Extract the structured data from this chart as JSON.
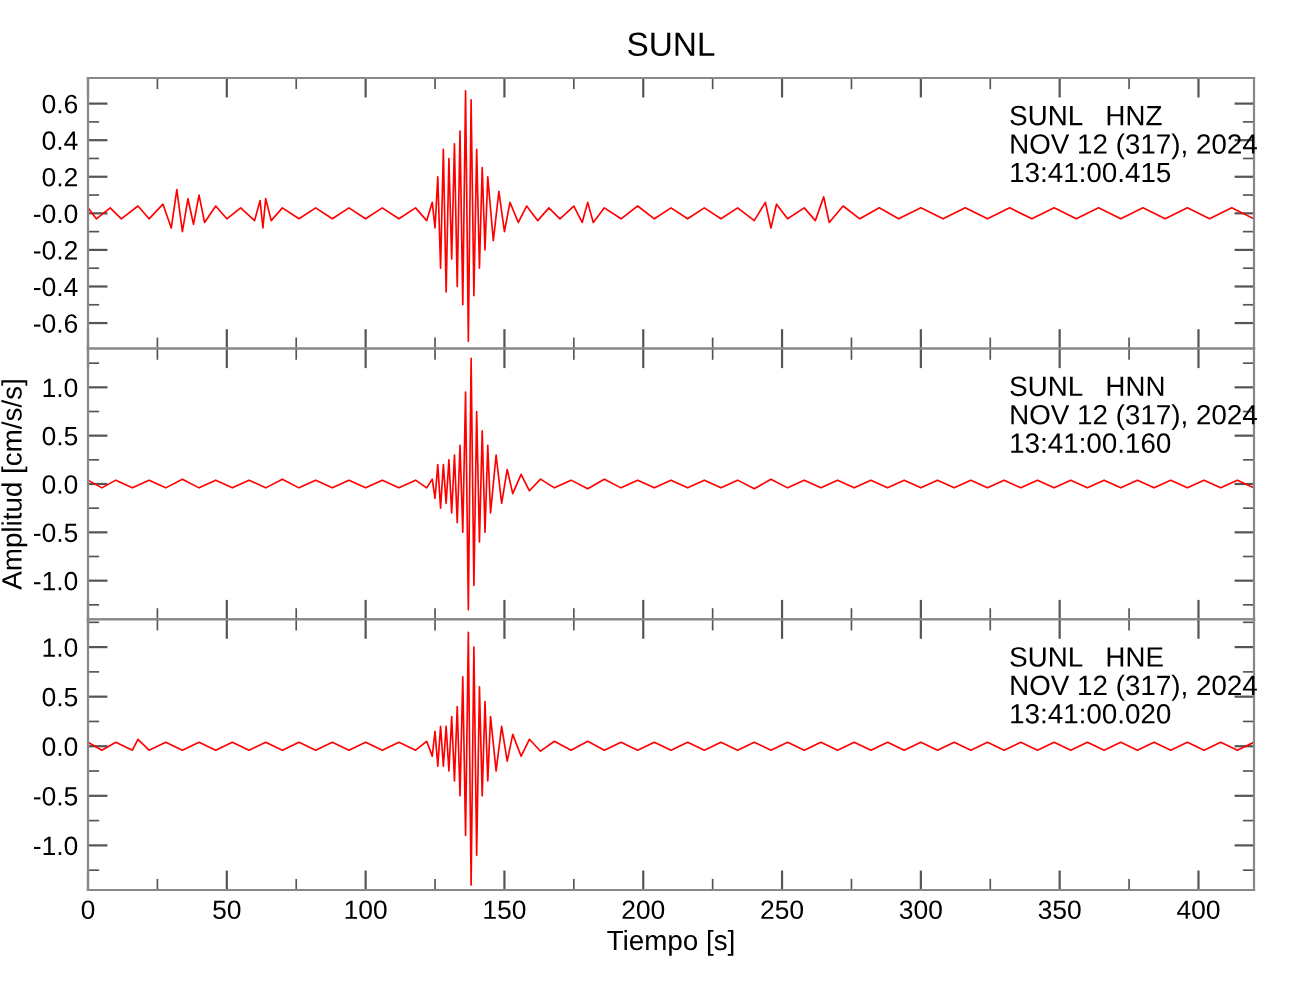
{
  "chart_data": [
    {
      "type": "line",
      "title": "SUNL",
      "annotations": [
        "SUNL   HNZ",
        "NOV 12 (317), 2024",
        "13:41:00.415"
      ],
      "tick_labels": "y",
      "xlim": [
        0,
        420
      ],
      "ylim": [
        -0.74,
        0.74
      ],
      "xticks": [
        0,
        {
          "value": 25,
          "label": null
        },
        50,
        {
          "value": 75,
          "label": null
        },
        100,
        {
          "value": 125,
          "label": null
        },
        150,
        {
          "value": 175,
          "label": null
        },
        200,
        {
          "value": 225,
          "label": null
        },
        250,
        {
          "value": 275,
          "label": null
        },
        300,
        {
          "value": 325,
          "label": null
        },
        350,
        {
          "value": 375,
          "label": null
        },
        400
      ],
      "yticks": [
        -0.6,
        {
          "value": -0.5,
          "label": null
        },
        -0.4,
        {
          "value": -0.3,
          "label": null
        },
        -0.2,
        {
          "value": -0.1,
          "label": null
        },
        {
          "value": 0,
          "label": "-0.0"
        },
        {
          "value": 0.1,
          "label": null
        },
        0.2,
        {
          "value": 0.3,
          "label": null
        },
        0.4,
        {
          "value": 0.5,
          "label": null
        },
        0.6
      ],
      "x": [
        0,
        3,
        8,
        12,
        18,
        22,
        27,
        30,
        32,
        34,
        36,
        38,
        40,
        42,
        46,
        50,
        55,
        60,
        62,
        63,
        64,
        66,
        70,
        76,
        82,
        88,
        94,
        100,
        106,
        112,
        118,
        122,
        124,
        125,
        126,
        127,
        128,
        129,
        130,
        131,
        132,
        133,
        134,
        135,
        136,
        137,
        138,
        139,
        140,
        141,
        142,
        143,
        144,
        146,
        148,
        150,
        152,
        155,
        158,
        162,
        166,
        170,
        175,
        178,
        180,
        182,
        186,
        192,
        198,
        204,
        210,
        216,
        222,
        228,
        234,
        240,
        244,
        246,
        248,
        252,
        258,
        262,
        265,
        267,
        272,
        278,
        285,
        292,
        300,
        308,
        316,
        324,
        332,
        340,
        348,
        356,
        364,
        372,
        380,
        388,
        396,
        404,
        412,
        420
      ],
      "series": [
        {
          "color": "#ff0000",
          "values": [
            0.03,
            -0.03,
            0.03,
            -0.03,
            0.04,
            -0.03,
            0.05,
            -0.08,
            0.13,
            -0.1,
            0.08,
            -0.06,
            0.1,
            -0.05,
            0.04,
            -0.03,
            0.03,
            -0.04,
            0.07,
            -0.08,
            0.08,
            -0.04,
            0.03,
            -0.03,
            0.03,
            -0.03,
            0.03,
            -0.03,
            0.03,
            -0.03,
            0.03,
            -0.04,
            0.06,
            -0.08,
            0.2,
            -0.3,
            0.35,
            -0.43,
            0.3,
            -0.25,
            0.38,
            -0.4,
            0.45,
            -0.5,
            0.67,
            -0.7,
            0.62,
            -0.45,
            0.35,
            -0.3,
            0.25,
            -0.2,
            0.2,
            -0.15,
            0.12,
            -0.1,
            0.06,
            -0.05,
            0.04,
            -0.04,
            0.03,
            -0.03,
            0.04,
            -0.05,
            0.06,
            -0.05,
            0.03,
            -0.03,
            0.04,
            -0.03,
            0.03,
            -0.03,
            0.03,
            -0.03,
            0.03,
            -0.04,
            0.06,
            -0.08,
            0.05,
            -0.03,
            0.03,
            -0.04,
            0.09,
            -0.05,
            0.04,
            -0.03,
            0.03,
            -0.03,
            0.03,
            -0.03,
            0.03,
            -0.03,
            0.03,
            -0.03,
            0.03,
            -0.03,
            0.03,
            -0.03,
            0.03,
            -0.03,
            0.03,
            -0.03,
            0.03,
            -0.03
          ]
        }
      ]
    },
    {
      "type": "line",
      "ylabel": "Amplitud [cm/s/s]",
      "annotations": [
        "SUNL   HNN",
        "NOV 12 (317), 2024",
        "13:41:00.160"
      ],
      "tick_labels": "y",
      "xlim": [
        0,
        420
      ],
      "ylim": [
        -1.4,
        1.4
      ],
      "xticks": [
        0,
        {
          "value": 25,
          "label": null
        },
        50,
        {
          "value": 75,
          "label": null
        },
        100,
        {
          "value": 125,
          "label": null
        },
        150,
        {
          "value": 175,
          "label": null
        },
        200,
        {
          "value": 225,
          "label": null
        },
        250,
        {
          "value": 275,
          "label": null
        },
        300,
        {
          "value": 325,
          "label": null
        },
        350,
        {
          "value": 375,
          "label": null
        },
        400
      ],
      "yticks": [
        {
          "value": -1.25,
          "label": null
        },
        {
          "value": -1.0,
          "label": "-1.0"
        },
        {
          "value": -0.75,
          "label": null
        },
        -0.5,
        {
          "value": -0.25,
          "label": null
        },
        {
          "value": 0,
          "label": "0.0"
        },
        {
          "value": 0.25,
          "label": null
        },
        0.5,
        {
          "value": 0.75,
          "label": null
        },
        {
          "value": 1.0,
          "label": "1.0"
        },
        {
          "value": 1.25,
          "label": null
        }
      ],
      "x": [
        0,
        5,
        10,
        16,
        22,
        28,
        34,
        40,
        46,
        52,
        58,
        64,
        70,
        76,
        82,
        88,
        94,
        100,
        106,
        112,
        118,
        122,
        124,
        125,
        126,
        127,
        128,
        129,
        130,
        131,
        132,
        133,
        134,
        135,
        136,
        137,
        138,
        139,
        140,
        141,
        142,
        143,
        144,
        145,
        147,
        149,
        151,
        153,
        156,
        159,
        163,
        168,
        174,
        180,
        186,
        192,
        198,
        204,
        210,
        216,
        222,
        228,
        234,
        240,
        246,
        252,
        258,
        264,
        270,
        276,
        282,
        288,
        294,
        300,
        306,
        312,
        318,
        324,
        330,
        336,
        342,
        348,
        354,
        360,
        366,
        372,
        378,
        384,
        390,
        396,
        402,
        408,
        414,
        420
      ],
      "series": [
        {
          "color": "#ff0000",
          "values": [
            0.04,
            -0.04,
            0.04,
            -0.04,
            0.04,
            -0.04,
            0.05,
            -0.04,
            0.04,
            -0.04,
            0.04,
            -0.04,
            0.05,
            -0.04,
            0.04,
            -0.04,
            0.04,
            -0.04,
            0.04,
            -0.04,
            0.04,
            -0.04,
            0.05,
            -0.15,
            0.2,
            -0.25,
            0.2,
            -0.2,
            0.25,
            -0.3,
            0.3,
            -0.4,
            0.4,
            -0.5,
            0.95,
            -1.3,
            1.3,
            -1.05,
            0.75,
            -0.6,
            0.55,
            -0.5,
            0.4,
            -0.3,
            0.3,
            -0.2,
            0.15,
            -0.1,
            0.1,
            -0.07,
            0.05,
            -0.04,
            0.04,
            -0.05,
            0.05,
            -0.04,
            0.04,
            -0.04,
            0.04,
            -0.04,
            0.04,
            -0.04,
            0.04,
            -0.05,
            0.05,
            -0.04,
            0.04,
            -0.04,
            0.04,
            -0.04,
            0.04,
            -0.04,
            0.04,
            -0.04,
            0.04,
            -0.04,
            0.04,
            -0.04,
            0.04,
            -0.04,
            0.04,
            -0.04,
            0.04,
            -0.04,
            0.04,
            -0.04,
            0.04,
            -0.04,
            0.04,
            -0.04,
            0.04,
            -0.04,
            0.04,
            -0.04
          ]
        }
      ]
    },
    {
      "type": "line",
      "xlabel": "Tiempo [s]",
      "annotations": [
        "SUNL   HNE",
        "NOV 12 (317), 2024",
        "13:41:00.020"
      ],
      "xlim": [
        0,
        420
      ],
      "ylim": [
        -1.45,
        1.28
      ],
      "xticks": [
        0,
        {
          "value": 25,
          "label": null
        },
        50,
        {
          "value": 75,
          "label": null
        },
        100,
        {
          "value": 125,
          "label": null
        },
        150,
        {
          "value": 175,
          "label": null
        },
        200,
        {
          "value": 225,
          "label": null
        },
        250,
        {
          "value": 275,
          "label": null
        },
        300,
        {
          "value": 325,
          "label": null
        },
        350,
        {
          "value": 375,
          "label": null
        },
        400
      ],
      "yticks": [
        {
          "value": -1.25,
          "label": null
        },
        {
          "value": -1.0,
          "label": "-1.0"
        },
        {
          "value": -0.75,
          "label": null
        },
        -0.5,
        {
          "value": -0.25,
          "label": null
        },
        {
          "value": 0,
          "label": "0.0"
        },
        {
          "value": 0.25,
          "label": null
        },
        0.5,
        {
          "value": 0.75,
          "label": null
        },
        {
          "value": 1.0,
          "label": "1.0"
        },
        {
          "value": 1.25,
          "label": null
        }
      ],
      "x": [
        0,
        5,
        10,
        16,
        18,
        22,
        28,
        34,
        40,
        46,
        52,
        58,
        64,
        70,
        76,
        82,
        88,
        94,
        100,
        106,
        112,
        118,
        122,
        124,
        125,
        126,
        127,
        128,
        129,
        130,
        131,
        132,
        133,
        134,
        135,
        136,
        137,
        138,
        139,
        140,
        141,
        142,
        143,
        144,
        145,
        147,
        149,
        151,
        153,
        156,
        159,
        163,
        168,
        174,
        180,
        186,
        192,
        198,
        204,
        210,
        216,
        222,
        228,
        234,
        240,
        246,
        252,
        258,
        264,
        270,
        276,
        282,
        288,
        294,
        300,
        306,
        312,
        318,
        324,
        330,
        336,
        342,
        348,
        354,
        360,
        366,
        372,
        378,
        384,
        390,
        396,
        402,
        408,
        414,
        420
      ],
      "series": [
        {
          "color": "#ff0000",
          "values": [
            0.04,
            -0.04,
            0.04,
            -0.04,
            0.07,
            -0.04,
            0.04,
            -0.04,
            0.04,
            -0.04,
            0.04,
            -0.04,
            0.04,
            -0.04,
            0.04,
            -0.04,
            0.04,
            -0.04,
            0.04,
            -0.04,
            0.04,
            -0.04,
            0.05,
            -0.1,
            0.15,
            -0.2,
            0.2,
            -0.2,
            0.2,
            -0.25,
            0.3,
            -0.35,
            0.4,
            -0.5,
            0.7,
            -0.9,
            1.15,
            -1.4,
            1.0,
            -1.1,
            0.6,
            -0.5,
            0.45,
            -0.35,
            0.3,
            -0.25,
            0.2,
            -0.15,
            0.12,
            -0.1,
            0.07,
            -0.05,
            0.05,
            -0.04,
            0.05,
            -0.04,
            0.04,
            -0.04,
            0.04,
            -0.04,
            0.04,
            -0.04,
            0.04,
            -0.04,
            0.04,
            -0.04,
            0.04,
            -0.04,
            0.04,
            -0.04,
            0.04,
            -0.04,
            0.04,
            -0.04,
            0.04,
            -0.04,
            0.04,
            -0.04,
            0.04,
            -0.04,
            0.04,
            -0.04,
            0.04,
            -0.04,
            0.04,
            -0.04,
            0.04,
            -0.04,
            0.04,
            -0.04,
            0.04,
            -0.04,
            0.04,
            -0.04,
            0.04
          ]
        }
      ]
    }
  ]
}
